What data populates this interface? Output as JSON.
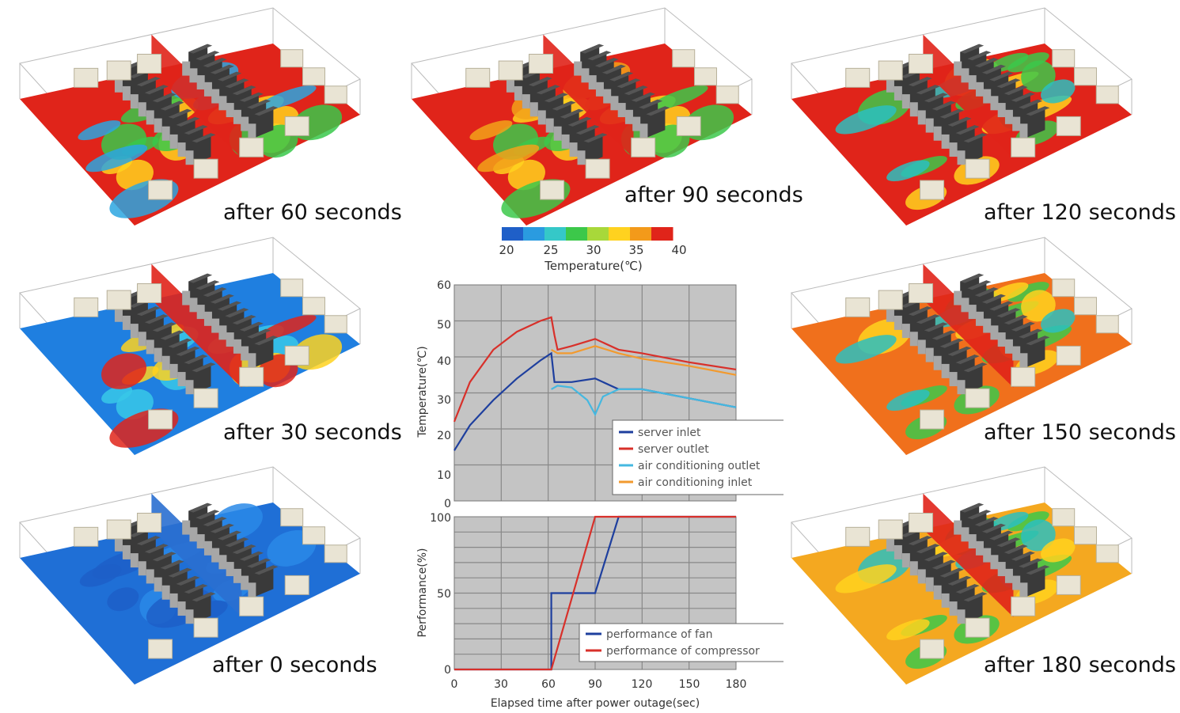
{
  "panels": [
    {
      "id": "p60",
      "label": "after 60 seconds",
      "floor": "#e0241a",
      "patches": [
        [
          "#ffd21f",
          0.6
        ],
        [
          "#38c84a",
          0.5
        ],
        [
          "#2ca6e0",
          0.35
        ]
      ]
    },
    {
      "id": "p90",
      "label": "after 90 seconds",
      "floor": "#e0241a",
      "patches": [
        [
          "#ffd21f",
          0.7
        ],
        [
          "#3cc84a",
          0.55
        ],
        [
          "#f2a21a",
          0.3
        ]
      ]
    },
    {
      "id": "p120",
      "label": "after 120 seconds",
      "floor": "#e0241a",
      "patches": [
        [
          "#ffd21f",
          0.35
        ],
        [
          "#3cc84a",
          0.6
        ],
        [
          "#2bc0c0",
          0.2
        ]
      ]
    },
    {
      "id": "p30",
      "label": "after 30 seconds",
      "floor": "#1f7fe0",
      "patches": [
        [
          "#38c8e8",
          0.45
        ],
        [
          "#ffd21f",
          0.35
        ],
        [
          "#e0241a",
          0.2
        ]
      ]
    },
    {
      "id": "p150",
      "label": "after 150 seconds",
      "floor": "#f0701c",
      "patches": [
        [
          "#3cc84a",
          0.6
        ],
        [
          "#ffd21f",
          0.35
        ],
        [
          "#2bc0c0",
          0.15
        ]
      ]
    },
    {
      "id": "p0",
      "label": "after 0 seconds",
      "floor": "#1f6fd6",
      "patches": [
        [
          "#2a8ae8",
          0.35
        ],
        [
          "#1d5fc8",
          0.25
        ]
      ]
    },
    {
      "id": "p180",
      "label": "after 180 seconds",
      "floor": "#f4a820",
      "patches": [
        [
          "#3cc84a",
          0.6
        ],
        [
          "#2bc0c0",
          0.3
        ],
        [
          "#ffd21f",
          0.3
        ]
      ]
    }
  ],
  "colorbar": {
    "ticks": [
      "20",
      "25",
      "30",
      "35",
      "40"
    ],
    "title": "Temperature(℃)",
    "colors": [
      "#1f5fc8",
      "#2a9be0",
      "#35c8c8",
      "#3cc84a",
      "#a8d83a",
      "#ffd21f",
      "#f39a1a",
      "#e0241a"
    ]
  },
  "chart_data": [
    {
      "type": "line",
      "ylabel": "Temperature(℃)",
      "xlim": [
        0,
        180
      ],
      "ylim": [
        0,
        60
      ],
      "y_ticks": [
        "0",
        "10",
        "20",
        "30",
        "40",
        "50",
        "60"
      ],
      "grid": true,
      "legend_position": "bottom-right",
      "series": [
        {
          "name": "server inlet",
          "color": "#1e3f9e",
          "x": [
            0,
            10,
            25,
            40,
            55,
            62,
            64,
            66,
            75,
            90,
            105,
            120,
            150,
            180
          ],
          "y": [
            14,
            21,
            28,
            34,
            39,
            41,
            33,
            33,
            33,
            34,
            31,
            31,
            28.5,
            26
          ]
        },
        {
          "name": "server outlet",
          "color": "#d8302a",
          "x": [
            0,
            10,
            25,
            40,
            55,
            62,
            64,
            66,
            75,
            90,
            105,
            120,
            150,
            180
          ],
          "y": [
            22,
            33,
            42,
            47,
            50,
            51,
            46,
            42,
            43,
            45,
            42,
            41,
            38.5,
            36.5
          ]
        },
        {
          "name": "air conditioning outlet",
          "color": "#45b8e0",
          "x": [
            62,
            66,
            75,
            85,
            90,
            95,
            105,
            120,
            150,
            180
          ],
          "y": [
            31,
            32,
            31.5,
            28,
            24,
            29,
            31,
            31,
            28.5,
            26
          ]
        },
        {
          "name": "air conditioning inlet",
          "color": "#f29a2e",
          "x": [
            62,
            66,
            75,
            90,
            105,
            120,
            150,
            180
          ],
          "y": [
            42,
            41,
            41,
            43,
            41,
            39.5,
            37.5,
            35
          ]
        }
      ]
    },
    {
      "type": "line",
      "xlabel": "Elapsed time after power outage(sec)",
      "ylabel": "Performance(%)",
      "xlim": [
        0,
        180
      ],
      "ylim": [
        0,
        100
      ],
      "x_ticks": [
        "0",
        "30",
        "60",
        "90",
        "120",
        "150",
        "180"
      ],
      "y_ticks": [
        "0",
        "50",
        "100"
      ],
      "grid": true,
      "legend_position": "bottom-right",
      "series": [
        {
          "name": "performance of fan",
          "color": "#1e3f9e",
          "x": [
            0,
            62,
            62,
            90,
            105,
            180
          ],
          "y": [
            0,
            0,
            50,
            50,
            100,
            100
          ]
        },
        {
          "name": "performance of compressor",
          "color": "#d8302a",
          "x": [
            0,
            62,
            90,
            180
          ],
          "y": [
            0,
            0,
            100,
            100
          ]
        }
      ]
    }
  ]
}
